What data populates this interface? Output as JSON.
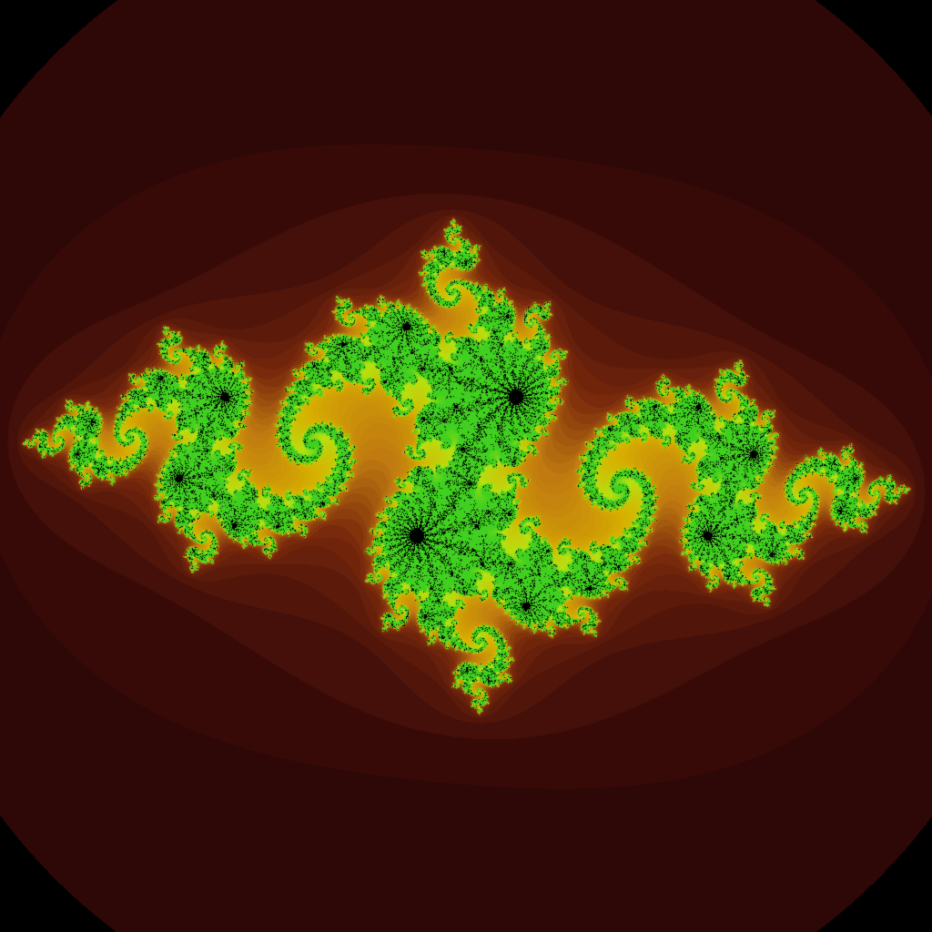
{
  "image": {
    "subject": "julia-set-fractal",
    "background_color": "#000000",
    "fractal": {
      "type": "julia",
      "c_real": -0.8,
      "c_imag": 0.156,
      "view_center": [
        0.0,
        0.0
      ],
      "view_width": 3.2,
      "max_iterations": 300,
      "bailout_radius": 2.0
    },
    "palette": {
      "set_interior": "#000000",
      "outer_band": "#170304",
      "mid_band": "#3a0b08",
      "inner_band": "#7a2a0c",
      "glow": "#c07a10",
      "gold": "#d8b000",
      "yellow_green": "#b8e010",
      "green": "#40d020"
    }
  }
}
